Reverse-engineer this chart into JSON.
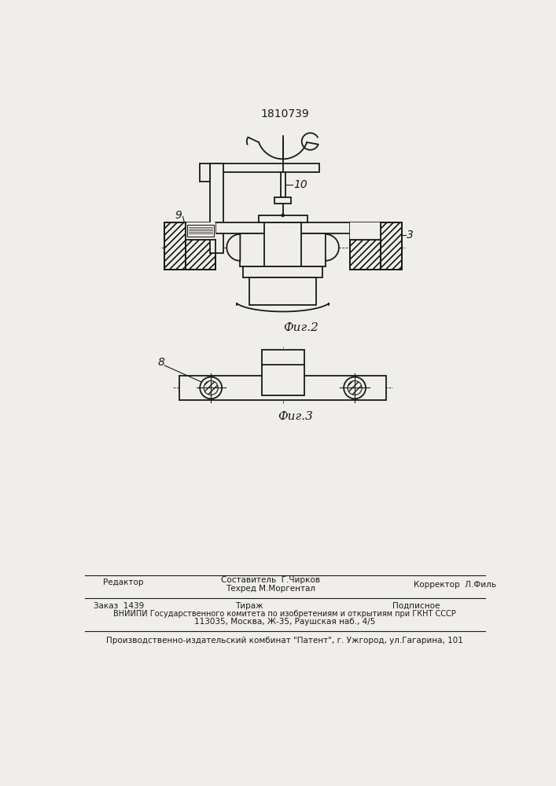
{
  "patent_number": "1810739",
  "fig2_label": "Фиг.2",
  "fig3_label": "Фиг.3",
  "label_9": "9",
  "label_10": "10",
  "label_3": "3",
  "label_8": "8",
  "footer_line1_left": "Редактор",
  "footer_line1_c1": "Составитель  Г.Чирков",
  "footer_line1_c2": "Техред М.Моргентал",
  "footer_line1_right": "Корректор  Л.Филь",
  "footer_line2_left": "Заказ  1439",
  "footer_line2_center": "Тираж",
  "footer_line2_right": "Подписное",
  "footer_line3": "ВНИИПИ Государственного комитета по изобретениям и открытиям при ГКНТ СССР",
  "footer_line4": "113035, Москва, Ж-35, Раушская наб., 4/5",
  "footer_line5": "Производственно-издательский комбинат \"Патент\", г. Ужгород, ул.Гагарина, 101",
  "bg_color": "#f0eeeb",
  "line_color": "#1a1a1a"
}
